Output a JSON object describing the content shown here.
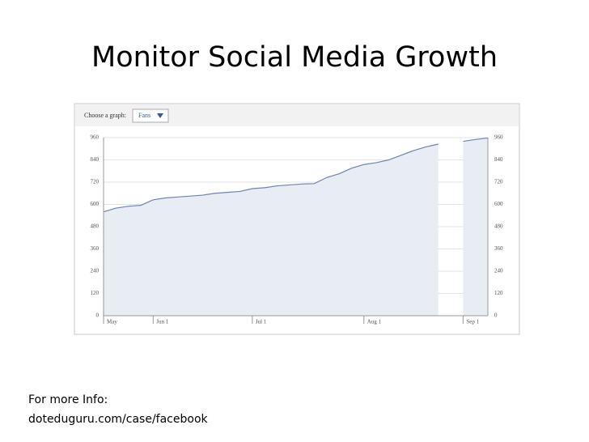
{
  "title": "Monitor Social Media Growth",
  "footer": {
    "label": "For more Info:",
    "url": "doteduguru.com/case/facebook"
  },
  "controls": {
    "label": "Choose a graph:",
    "selected": "Fans"
  },
  "chart_data": {
    "type": "area",
    "categories": [
      "May",
      null,
      null,
      null,
      "Jun 1",
      null,
      null,
      null,
      null,
      null,
      null,
      null,
      "Jul 1",
      null,
      null,
      null,
      null,
      null,
      null,
      null,
      null,
      "Aug 1",
      null,
      null,
      null,
      null,
      null,
      null,
      null,
      "Sep 1",
      null,
      null
    ],
    "series": [
      {
        "name": "Fans",
        "color": "#6d84b4",
        "values": [
          560,
          580,
          590,
          595,
          625,
          635,
          640,
          645,
          650,
          660,
          665,
          670,
          685,
          690,
          700,
          705,
          710,
          712,
          745,
          765,
          795,
          815,
          825,
          840,
          865,
          890,
          910,
          925,
          null,
          940,
          950,
          958
        ]
      }
    ],
    "ylim": [
      0,
      960
    ],
    "yticks": [
      0,
      120,
      240,
      360,
      480,
      600,
      720,
      840,
      960
    ],
    "grid": true
  }
}
